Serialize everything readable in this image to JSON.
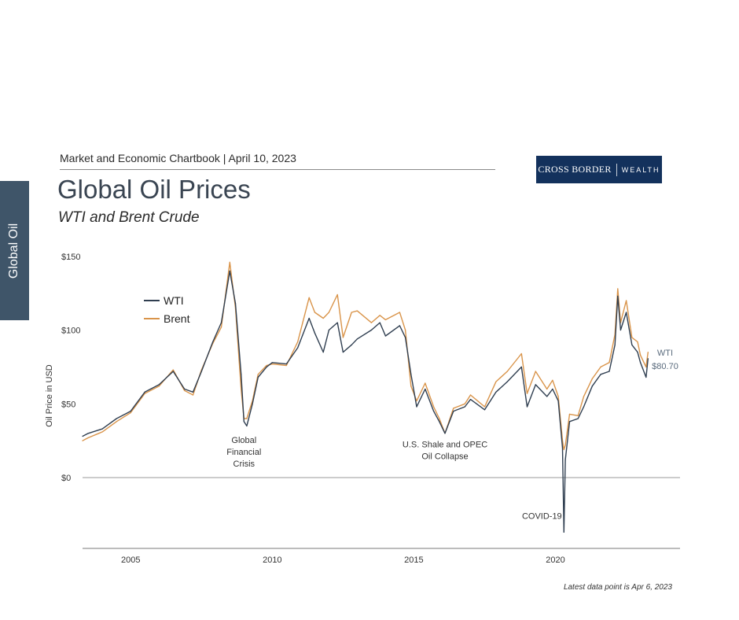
{
  "sidebar": {
    "tab_label": "Global Oil"
  },
  "header": {
    "report_line": "Market and Economic Chartbook | April 10, 2023",
    "logo_left": "CROSS BORDER",
    "logo_right": "WEALTH"
  },
  "colors": {
    "wti": "#2f3e50",
    "brent": "#d9944a",
    "brand": "#13315c",
    "sidebar": "#3f5569"
  },
  "footnote": "Latest data point is Apr 6, 2023",
  "chart_data": {
    "type": "line",
    "title": "Global Oil Prices",
    "subtitle": "WTI and Brent Crude",
    "ylabel": "Oil Price in USD",
    "xlabel": "",
    "ylim": [
      -50,
      150
    ],
    "xlim": [
      2003.3,
      2024.4
    ],
    "y_ticks": [
      {
        "value": 150,
        "label": "$150"
      },
      {
        "value": 100,
        "label": "$100"
      },
      {
        "value": 50,
        "label": "$50"
      },
      {
        "value": 0,
        "label": "$0"
      }
    ],
    "x_ticks": [
      {
        "value": 2005,
        "label": "2005"
      },
      {
        "value": 2010,
        "label": "2010"
      },
      {
        "value": 2015,
        "label": "2015"
      },
      {
        "value": 2020,
        "label": "2020"
      }
    ],
    "legend": {
      "position": "top-left"
    },
    "series": [
      {
        "name": "WTI",
        "points": [
          [
            2003.3,
            28
          ],
          [
            2003.5,
            30
          ],
          [
            2004.0,
            33
          ],
          [
            2004.5,
            40
          ],
          [
            2005.0,
            45
          ],
          [
            2005.5,
            58
          ],
          [
            2006.0,
            63
          ],
          [
            2006.5,
            72
          ],
          [
            2006.9,
            60
          ],
          [
            2007.2,
            58
          ],
          [
            2007.5,
            72
          ],
          [
            2007.9,
            92
          ],
          [
            2008.2,
            105
          ],
          [
            2008.5,
            140
          ],
          [
            2008.7,
            118
          ],
          [
            2008.9,
            70
          ],
          [
            2009.0,
            38
          ],
          [
            2009.1,
            35
          ],
          [
            2009.3,
            50
          ],
          [
            2009.5,
            68
          ],
          [
            2009.8,
            75
          ],
          [
            2010.0,
            78
          ],
          [
            2010.5,
            77
          ],
          [
            2010.9,
            88
          ],
          [
            2011.3,
            108
          ],
          [
            2011.5,
            98
          ],
          [
            2011.8,
            85
          ],
          [
            2012.0,
            100
          ],
          [
            2012.3,
            105
          ],
          [
            2012.5,
            85
          ],
          [
            2012.8,
            90
          ],
          [
            2013.0,
            94
          ],
          [
            2013.5,
            100
          ],
          [
            2013.8,
            105
          ],
          [
            2014.0,
            96
          ],
          [
            2014.5,
            103
          ],
          [
            2014.7,
            95
          ],
          [
            2014.9,
            70
          ],
          [
            2015.1,
            48
          ],
          [
            2015.4,
            60
          ],
          [
            2015.7,
            45
          ],
          [
            2015.9,
            38
          ],
          [
            2016.1,
            30
          ],
          [
            2016.4,
            45
          ],
          [
            2016.8,
            48
          ],
          [
            2017.0,
            53
          ],
          [
            2017.5,
            46
          ],
          [
            2017.9,
            58
          ],
          [
            2018.3,
            65
          ],
          [
            2018.8,
            75
          ],
          [
            2019.0,
            48
          ],
          [
            2019.3,
            63
          ],
          [
            2019.7,
            55
          ],
          [
            2019.9,
            60
          ],
          [
            2020.1,
            52
          ],
          [
            2020.25,
            20
          ],
          [
            2020.3,
            -37
          ],
          [
            2020.35,
            12
          ],
          [
            2020.5,
            38
          ],
          [
            2020.8,
            40
          ],
          [
            2021.0,
            48
          ],
          [
            2021.3,
            62
          ],
          [
            2021.6,
            70
          ],
          [
            2021.9,
            72
          ],
          [
            2022.1,
            90
          ],
          [
            2022.2,
            123
          ],
          [
            2022.3,
            100
          ],
          [
            2022.5,
            112
          ],
          [
            2022.7,
            90
          ],
          [
            2022.9,
            85
          ],
          [
            2023.0,
            78
          ],
          [
            2023.2,
            68
          ],
          [
            2023.27,
            80.7
          ]
        ]
      },
      {
        "name": "Brent",
        "points": [
          [
            2003.3,
            25
          ],
          [
            2003.5,
            27
          ],
          [
            2004.0,
            31
          ],
          [
            2004.5,
            38
          ],
          [
            2005.0,
            44
          ],
          [
            2005.5,
            57
          ],
          [
            2006.0,
            62
          ],
          [
            2006.5,
            73
          ],
          [
            2006.9,
            59
          ],
          [
            2007.2,
            56
          ],
          [
            2007.5,
            73
          ],
          [
            2007.9,
            91
          ],
          [
            2008.2,
            102
          ],
          [
            2008.5,
            146
          ],
          [
            2008.7,
            115
          ],
          [
            2008.9,
            60
          ],
          [
            2009.0,
            40
          ],
          [
            2009.1,
            40
          ],
          [
            2009.3,
            52
          ],
          [
            2009.5,
            70
          ],
          [
            2009.8,
            76
          ],
          [
            2010.0,
            77
          ],
          [
            2010.5,
            76
          ],
          [
            2010.9,
            92
          ],
          [
            2011.3,
            122
          ],
          [
            2011.5,
            112
          ],
          [
            2011.8,
            108
          ],
          [
            2012.0,
            112
          ],
          [
            2012.3,
            124
          ],
          [
            2012.5,
            95
          ],
          [
            2012.8,
            112
          ],
          [
            2013.0,
            113
          ],
          [
            2013.5,
            105
          ],
          [
            2013.8,
            110
          ],
          [
            2014.0,
            107
          ],
          [
            2014.5,
            112
          ],
          [
            2014.7,
            100
          ],
          [
            2014.9,
            62
          ],
          [
            2015.1,
            52
          ],
          [
            2015.4,
            64
          ],
          [
            2015.7,
            48
          ],
          [
            2015.9,
            40
          ],
          [
            2016.1,
            30
          ],
          [
            2016.4,
            47
          ],
          [
            2016.8,
            50
          ],
          [
            2017.0,
            56
          ],
          [
            2017.5,
            48
          ],
          [
            2017.9,
            65
          ],
          [
            2018.3,
            72
          ],
          [
            2018.8,
            84
          ],
          [
            2019.0,
            57
          ],
          [
            2019.3,
            72
          ],
          [
            2019.7,
            60
          ],
          [
            2019.9,
            66
          ],
          [
            2020.1,
            55
          ],
          [
            2020.25,
            25
          ],
          [
            2020.3,
            19
          ],
          [
            2020.35,
            22
          ],
          [
            2020.5,
            43
          ],
          [
            2020.8,
            42
          ],
          [
            2021.0,
            55
          ],
          [
            2021.3,
            67
          ],
          [
            2021.6,
            75
          ],
          [
            2021.9,
            78
          ],
          [
            2022.1,
            97
          ],
          [
            2022.2,
            128
          ],
          [
            2022.3,
            105
          ],
          [
            2022.5,
            120
          ],
          [
            2022.7,
            95
          ],
          [
            2022.9,
            92
          ],
          [
            2023.0,
            83
          ],
          [
            2023.2,
            75
          ],
          [
            2023.27,
            85
          ]
        ]
      }
    ],
    "annotations": [
      {
        "lines": [
          "Global",
          "Financial",
          "Crisis"
        ],
        "x": 2009.0,
        "y": 30
      },
      {
        "lines": [
          "U.S. Shale and OPEC",
          "Oil Collapse"
        ],
        "x": 2016.1,
        "y": 27
      },
      {
        "lines": [
          "COVID-19"
        ],
        "x": 2020.3,
        "y": -28
      }
    ],
    "end_label": {
      "lines": [
        "WTI",
        "$80.70"
      ],
      "x": 2023.27,
      "y": 80.7
    }
  }
}
